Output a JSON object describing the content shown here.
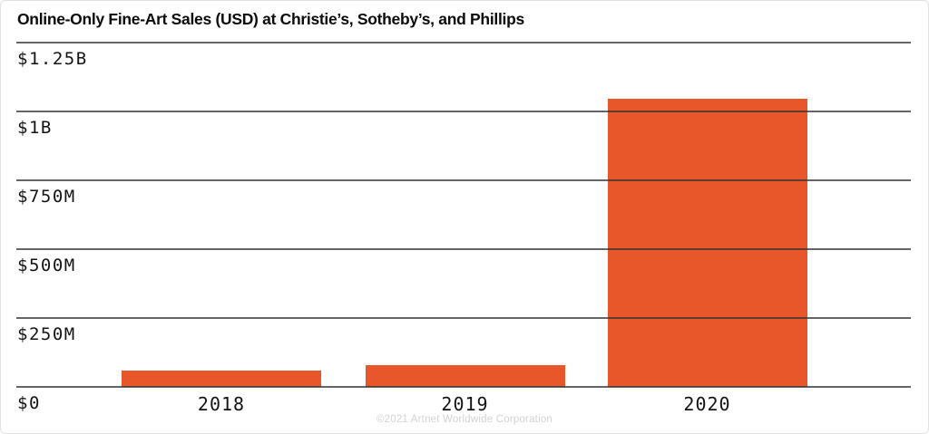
{
  "header": {
    "title": "Online-Only Fine-Art Sales (USD) at Christie’s, Sotheby’s, and Phillips"
  },
  "footer": {
    "copyright": "©2021 Artnet Worldwide Corporation"
  },
  "colors": {
    "background": "#FFFFFF",
    "bar": "#E8572A",
    "gridline": "#3C3C3C",
    "title_text": "#0C0C0C",
    "axis_text": "#141414",
    "footer_text": "#D3D3D3"
  },
  "chart_data": {
    "type": "bar",
    "title": "Online-Only Fine-Art Sales (USD) at Christie’s, Sotheby’s, and Phillips",
    "categories": [
      "2018",
      "2019",
      "2020"
    ],
    "values": [
      60,
      80,
      1045
    ],
    "unit": "USD millions",
    "xlabel": "",
    "ylabel": "",
    "ylim": [
      0,
      1250
    ],
    "yticks": [
      {
        "value": 0,
        "label": "$0"
      },
      {
        "value": 250,
        "label": "$250M"
      },
      {
        "value": 500,
        "label": "$500M"
      },
      {
        "value": 750,
        "label": "$750M"
      },
      {
        "value": 1000,
        "label": "$1B"
      },
      {
        "value": 1250,
        "label": "$1.25B"
      }
    ],
    "grid": "horizontal",
    "legend": "none",
    "bar_color": "#E8572A"
  }
}
